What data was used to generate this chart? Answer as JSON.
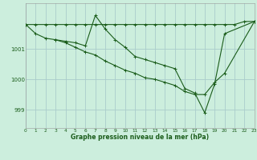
{
  "background_color": "#cceedd",
  "grid_color": "#aacccc",
  "line_color": "#1a5c1a",
  "xlim": [
    0,
    23
  ],
  "ylim": [
    998.4,
    1002.5
  ],
  "yticks": [
    999,
    1000,
    1001
  ],
  "xticks": [
    0,
    1,
    2,
    3,
    4,
    5,
    6,
    7,
    8,
    9,
    10,
    11,
    12,
    13,
    14,
    15,
    16,
    17,
    18,
    19,
    20,
    21,
    22,
    23
  ],
  "xlabel": "Graphe pression niveau de la mer (hPa)",
  "series1_x": [
    0,
    1,
    2,
    3,
    4,
    5,
    6,
    7,
    8,
    9,
    10,
    11,
    12,
    13,
    14,
    15,
    16,
    17,
    18,
    19,
    20,
    21,
    22,
    23
  ],
  "series1_y": [
    1001.8,
    1001.8,
    1001.8,
    1001.8,
    1001.8,
    1001.8,
    1001.8,
    1001.8,
    1001.8,
    1001.8,
    1001.8,
    1001.8,
    1001.8,
    1001.8,
    1001.8,
    1001.8,
    1001.8,
    1001.8,
    1001.8,
    1001.8,
    1001.8,
    1001.8,
    1001.9,
    1001.9
  ],
  "series2_x": [
    0,
    1,
    2,
    3,
    4,
    5,
    6,
    7,
    8,
    9,
    10,
    11,
    12,
    13,
    14,
    15,
    16,
    17,
    18,
    19,
    20,
    23
  ],
  "series2_y": [
    1001.8,
    1001.5,
    1001.35,
    1001.3,
    1001.25,
    1001.2,
    1001.1,
    1002.1,
    1001.65,
    1001.3,
    1001.05,
    1000.75,
    1000.65,
    1000.55,
    1000.45,
    1000.35,
    999.7,
    999.55,
    998.9,
    999.85,
    1001.5,
    1001.9
  ],
  "series3_x": [
    3,
    4,
    5,
    6,
    7,
    8,
    9,
    10,
    11,
    12,
    13,
    14,
    15,
    16,
    17,
    18,
    19,
    20,
    23
  ],
  "series3_y": [
    1001.3,
    1001.2,
    1001.05,
    1000.9,
    1000.8,
    1000.6,
    1000.45,
    1000.3,
    1000.2,
    1000.05,
    1000.0,
    999.9,
    999.8,
    999.6,
    999.5,
    999.5,
    999.9,
    1000.2,
    1001.9
  ]
}
